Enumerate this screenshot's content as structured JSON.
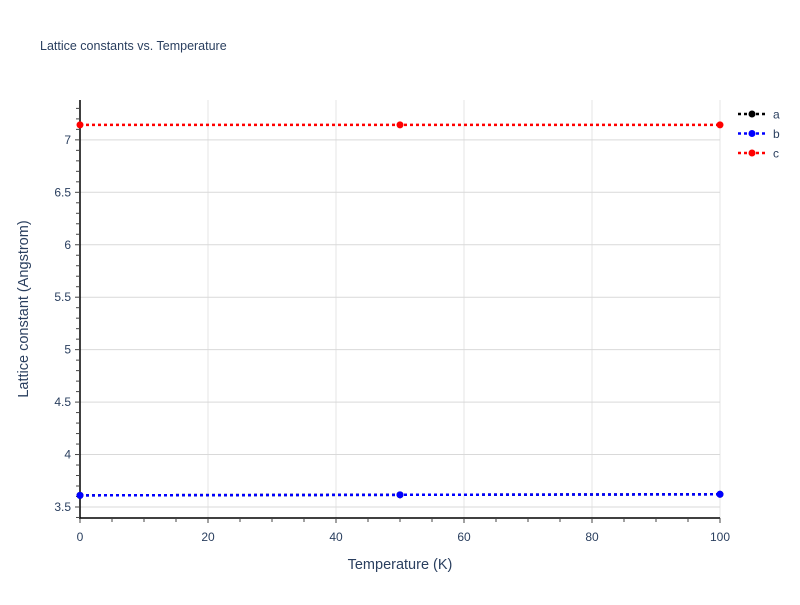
{
  "chart_data": {
    "type": "line",
    "title": "Lattice constants vs. Temperature",
    "xlabel": "Temperature (K)",
    "ylabel": "Lattice constant (Angstrom)",
    "xlim": [
      0,
      100
    ],
    "ylim": [
      3.395,
      7.38
    ],
    "x_ticks": [
      "0",
      "20",
      "40",
      "60",
      "80",
      "100"
    ],
    "y_ticks": [
      "3.5",
      "4",
      "4.5",
      "5",
      "5.5",
      "6",
      "6.5",
      "7"
    ],
    "grid": true,
    "legend_position": "top-right",
    "x": [
      0,
      50,
      100
    ],
    "series": [
      {
        "name": "a",
        "color": "#000000",
        "values": [
          3.611,
          3.616,
          3.621
        ],
        "line_style": "dotted",
        "markers": true
      },
      {
        "name": "b",
        "color": "#0000ff",
        "values": [
          3.611,
          3.616,
          3.621
        ],
        "line_style": "dotted",
        "markers": true
      },
      {
        "name": "c",
        "color": "#ff0000",
        "values": [
          7.143,
          7.143,
          7.143
        ],
        "line_style": "dotted",
        "markers": true
      }
    ]
  }
}
